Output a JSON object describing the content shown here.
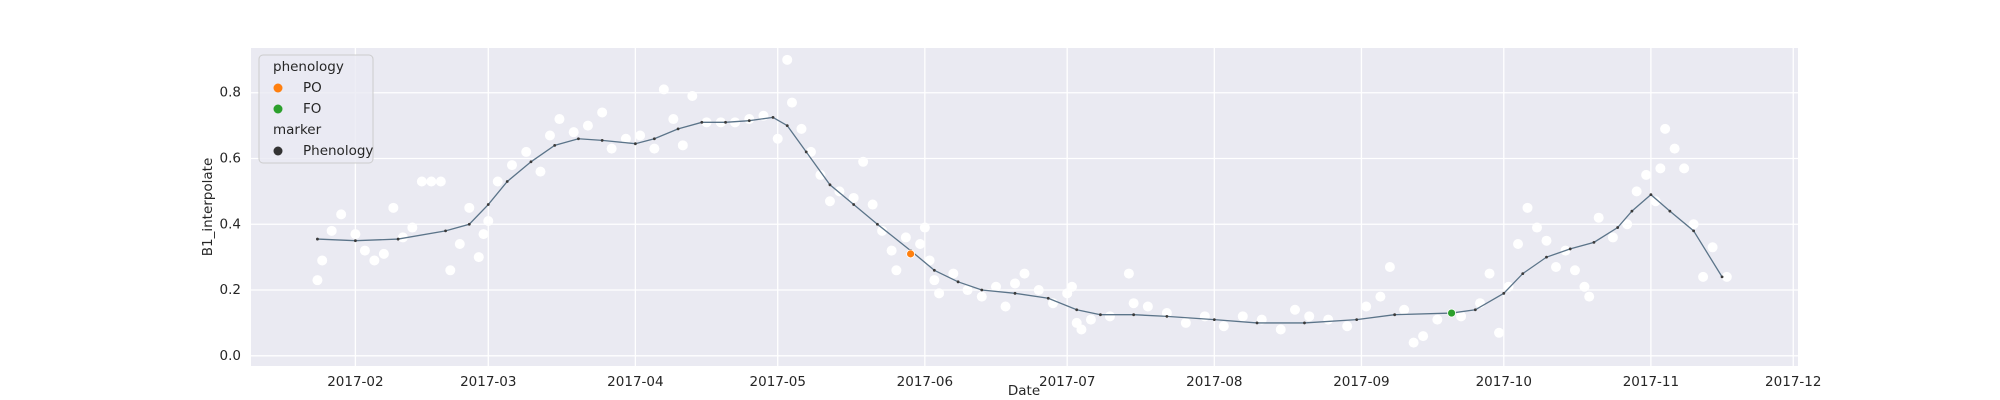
{
  "chart_data": {
    "type": "line",
    "xlabel": "Date",
    "ylabel": "B1_interpolate",
    "xlim": [
      "2017-01-10",
      "2017-12-02"
    ],
    "ylim": [
      -0.031,
      0.936
    ],
    "xticks": [
      {
        "value": "2017-02-01",
        "label": "2017-02"
      },
      {
        "value": "2017-03-01",
        "label": "2017-03"
      },
      {
        "value": "2017-04-01",
        "label": "2017-04"
      },
      {
        "value": "2017-05-01",
        "label": "2017-05"
      },
      {
        "value": "2017-06-01",
        "label": "2017-06"
      },
      {
        "value": "2017-07-01",
        "label": "2017-07"
      },
      {
        "value": "2017-08-01",
        "label": "2017-08"
      },
      {
        "value": "2017-09-01",
        "label": "2017-09"
      },
      {
        "value": "2017-10-01",
        "label": "2017-10"
      },
      {
        "value": "2017-11-01",
        "label": "2017-11"
      },
      {
        "value": "2017-12-01",
        "label": "2017-12"
      }
    ],
    "yticks": [
      {
        "value": 0,
        "label": "0.0"
      },
      0.2,
      0.4,
      0.6,
      0.8
    ],
    "grid": true,
    "background": "#eaeaf2",
    "legend_loc": "upper left",
    "observations": {
      "color": "#ffffff",
      "x": [
        "2017-01-24",
        "2017-01-25",
        "2017-01-27",
        "2017-01-29",
        "2017-02-01",
        "2017-02-03",
        "2017-02-05",
        "2017-02-07",
        "2017-02-09",
        "2017-02-11",
        "2017-02-13",
        "2017-02-15",
        "2017-02-17",
        "2017-02-19",
        "2017-02-21",
        "2017-02-23",
        "2017-02-25",
        "2017-02-27",
        "2017-02-28",
        "2017-03-01",
        "2017-03-03",
        "2017-03-06",
        "2017-03-09",
        "2017-03-12",
        "2017-03-14",
        "2017-03-16",
        "2017-03-19",
        "2017-03-22",
        "2017-03-25",
        "2017-03-27",
        "2017-03-30",
        "2017-04-02",
        "2017-04-05",
        "2017-04-07",
        "2017-04-09",
        "2017-04-11",
        "2017-04-13",
        "2017-04-16",
        "2017-04-19",
        "2017-04-22",
        "2017-04-25",
        "2017-04-28",
        "2017-05-01",
        "2017-05-03",
        "2017-05-04",
        "2017-05-06",
        "2017-05-08",
        "2017-05-10",
        "2017-05-12",
        "2017-05-14",
        "2017-05-17",
        "2017-05-19",
        "2017-05-21",
        "2017-05-23",
        "2017-05-25",
        "2017-05-26",
        "2017-05-28",
        "2017-05-31",
        "2017-06-01",
        "2017-06-02",
        "2017-06-03",
        "2017-06-04",
        "2017-06-07",
        "2017-06-10",
        "2017-06-13",
        "2017-06-16",
        "2017-06-18",
        "2017-06-20",
        "2017-06-22",
        "2017-06-25",
        "2017-06-28",
        "2017-07-01",
        "2017-07-02",
        "2017-07-03",
        "2017-07-04",
        "2017-07-06",
        "2017-07-10",
        "2017-07-14",
        "2017-07-15",
        "2017-07-18",
        "2017-07-22",
        "2017-07-26",
        "2017-07-30",
        "2017-08-03",
        "2017-08-07",
        "2017-08-11",
        "2017-08-15",
        "2017-08-18",
        "2017-08-21",
        "2017-08-25",
        "2017-08-29",
        "2017-09-02",
        "2017-09-05",
        "2017-09-07",
        "2017-09-10",
        "2017-09-12",
        "2017-09-14",
        "2017-09-17",
        "2017-09-22",
        "2017-09-26",
        "2017-09-28",
        "2017-09-30",
        "2017-10-02",
        "2017-10-04",
        "2017-10-06",
        "2017-10-08",
        "2017-10-10",
        "2017-10-12",
        "2017-10-14",
        "2017-10-16",
        "2017-10-18",
        "2017-10-19",
        "2017-10-21",
        "2017-10-24",
        "2017-10-27",
        "2017-10-29",
        "2017-10-31",
        "2017-11-02",
        "2017-11-03",
        "2017-11-04",
        "2017-11-06",
        "2017-11-08",
        "2017-11-10",
        "2017-11-12",
        "2017-11-14",
        "2017-11-17"
      ],
      "values": [
        0.23,
        0.29,
        0.38,
        0.43,
        0.37,
        0.32,
        0.29,
        0.31,
        0.45,
        0.36,
        0.39,
        0.53,
        0.53,
        0.53,
        0.26,
        0.34,
        0.45,
        0.3,
        0.37,
        0.41,
        0.53,
        0.58,
        0.62,
        0.56,
        0.67,
        0.72,
        0.68,
        0.7,
        0.74,
        0.63,
        0.66,
        0.67,
        0.63,
        0.81,
        0.72,
        0.64,
        0.79,
        0.71,
        0.71,
        0.71,
        0.72,
        0.73,
        0.66,
        0.9,
        0.77,
        0.69,
        0.62,
        0.55,
        0.47,
        0.5,
        0.48,
        0.59,
        0.46,
        0.38,
        0.32,
        0.26,
        0.36,
        0.34,
        0.39,
        0.29,
        0.23,
        0.19,
        0.25,
        0.2,
        0.18,
        0.21,
        0.15,
        0.22,
        0.25,
        0.2,
        0.16,
        0.19,
        0.21,
        0.1,
        0.08,
        0.11,
        0.12,
        0.25,
        0.16,
        0.15,
        0.13,
        0.1,
        0.12,
        0.09,
        0.12,
        0.11,
        0.08,
        0.14,
        0.12,
        0.11,
        0.09,
        0.15,
        0.18,
        0.27,
        0.14,
        0.04,
        0.06,
        0.11,
        0.12,
        0.16,
        0.25,
        0.07,
        0.21,
        0.34,
        0.45,
        0.39,
        0.35,
        0.27,
        0.32,
        0.26,
        0.21,
        0.18,
        0.42,
        0.36,
        0.4,
        0.5,
        0.55,
        0.47,
        0.57,
        0.69,
        0.63,
        0.57,
        0.4,
        0.24,
        0.33,
        0.24
      ]
    },
    "interpolated": {
      "color": "#5b7489",
      "marker_color": "#3a3a3a",
      "x": [
        "2017-01-24",
        "2017-02-01",
        "2017-02-10",
        "2017-02-20",
        "2017-02-25",
        "2017-03-01",
        "2017-03-05",
        "2017-03-10",
        "2017-03-15",
        "2017-03-20",
        "2017-03-25",
        "2017-04-01",
        "2017-04-05",
        "2017-04-10",
        "2017-04-15",
        "2017-04-20",
        "2017-04-25",
        "2017-04-30",
        "2017-05-03",
        "2017-05-07",
        "2017-05-12",
        "2017-05-17",
        "2017-05-22",
        "2017-05-29",
        "2017-06-03",
        "2017-06-08",
        "2017-06-13",
        "2017-06-20",
        "2017-06-27",
        "2017-07-03",
        "2017-07-08",
        "2017-07-15",
        "2017-07-22",
        "2017-08-01",
        "2017-08-10",
        "2017-08-20",
        "2017-08-31",
        "2017-09-08",
        "2017-09-20",
        "2017-09-25",
        "2017-10-01",
        "2017-10-05",
        "2017-10-10",
        "2017-10-15",
        "2017-10-20",
        "2017-10-25",
        "2017-10-28",
        "2017-11-01",
        "2017-11-05",
        "2017-11-10",
        "2017-11-16"
      ],
      "values": [
        0.355,
        0.35,
        0.355,
        0.38,
        0.4,
        0.46,
        0.53,
        0.59,
        0.64,
        0.66,
        0.655,
        0.645,
        0.66,
        0.69,
        0.71,
        0.71,
        0.715,
        0.725,
        0.7,
        0.62,
        0.52,
        0.46,
        0.4,
        0.32,
        0.26,
        0.225,
        0.2,
        0.19,
        0.175,
        0.14,
        0.125,
        0.125,
        0.12,
        0.11,
        0.1,
        0.1,
        0.11,
        0.125,
        0.13,
        0.14,
        0.19,
        0.25,
        0.3,
        0.325,
        0.345,
        0.39,
        0.44,
        0.49,
        0.44,
        0.38,
        0.24
      ]
    },
    "phenology": {
      "title": "phenology",
      "series": [
        {
          "name": "PO",
          "color": "#ff7f0e",
          "x": [
            "2017-05-29"
          ],
          "values": [
            0.31
          ]
        },
        {
          "name": "FO",
          "color": "#2ca02c",
          "x": [
            "2017-09-20"
          ],
          "values": [
            0.13
          ]
        }
      ]
    },
    "marker": {
      "title": "marker",
      "name": "Phenology",
      "color": "#333333"
    }
  }
}
